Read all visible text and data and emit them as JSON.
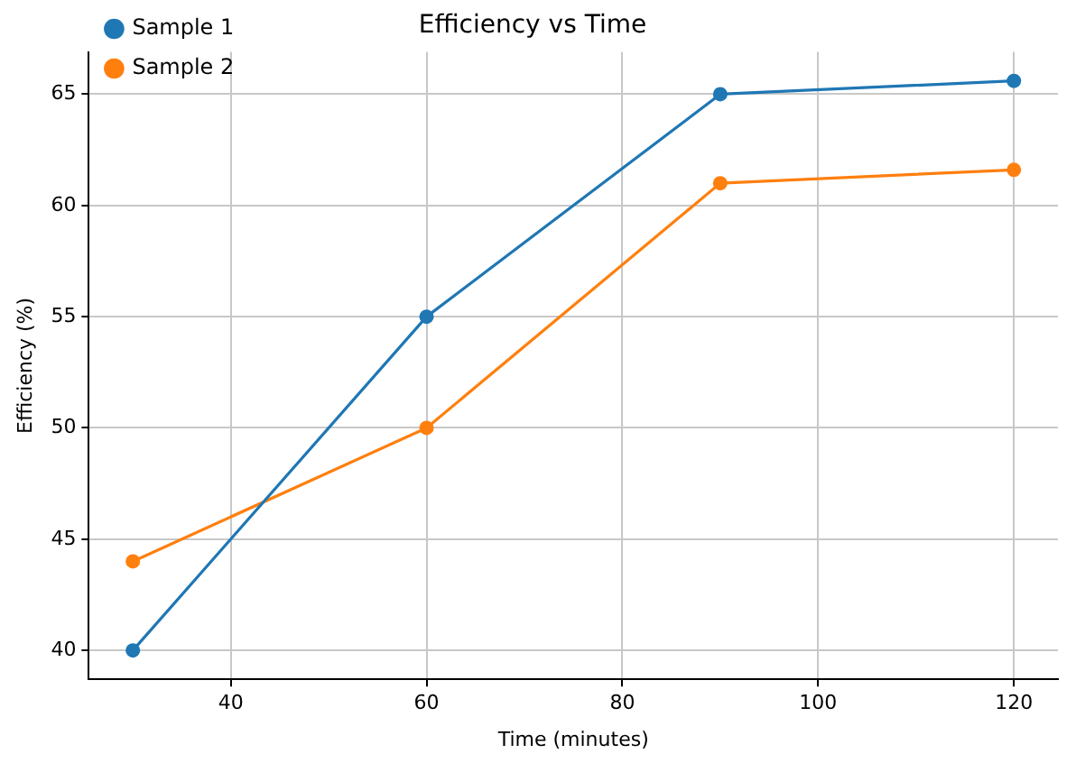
{
  "chart_data": {
    "type": "line",
    "title": "Efficiency vs Time",
    "xlabel": "Time (minutes)",
    "ylabel": "Efficiency (%)",
    "x": [
      30,
      60,
      90,
      120
    ],
    "series": [
      {
        "name": "Sample 1",
        "color": "#1f77b4",
        "values": [
          40,
          55,
          65,
          65.6
        ]
      },
      {
        "name": "Sample 2",
        "color": "#ff7f0e",
        "values": [
          44,
          50,
          61,
          61.6
        ]
      }
    ],
    "xlim": [
      25.5,
      124.5
    ],
    "xticks": [
      40,
      60,
      80,
      100,
      120
    ],
    "ylim": [
      38.7,
      66.9
    ],
    "yticks": [
      40,
      45,
      50,
      55,
      60,
      65
    ],
    "grid": true,
    "legend": "top left",
    "marker": "circle",
    "line_style": "solid"
  }
}
